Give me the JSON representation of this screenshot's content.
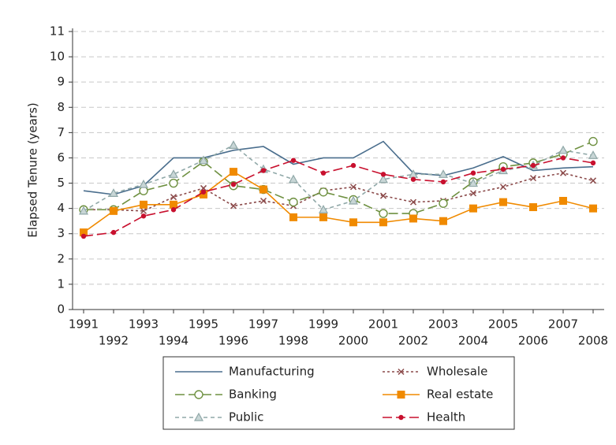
{
  "chart_data": {
    "type": "line",
    "y_label": "Elapsed Tenure (years)",
    "x": [
      1991,
      1992,
      1993,
      1994,
      1995,
      1996,
      1997,
      1998,
      1999,
      2000,
      2001,
      2002,
      2003,
      2004,
      2005,
      2006,
      2007,
      2008
    ],
    "xlim": [
      1991,
      2008
    ],
    "xticks": [
      1991,
      1992,
      1993,
      1994,
      1995,
      1996,
      1997,
      1998,
      1999,
      2000,
      2001,
      2002,
      2003,
      2004,
      2005,
      2006,
      2007,
      2008
    ],
    "ylim": [
      0,
      11
    ],
    "yticks": [
      0,
      1,
      2,
      3,
      4,
      5,
      6,
      7,
      8,
      9,
      10,
      11
    ],
    "grid": true,
    "legend": "bottom",
    "series": [
      {
        "name": "Manufacturing",
        "color": "#4a6e8d",
        "dash": "solid",
        "marker": "none",
        "values": [
          4.7,
          4.55,
          4.9,
          6.0,
          6.0,
          6.3,
          6.45,
          5.75,
          6.0,
          6.0,
          6.65,
          5.4,
          5.3,
          5.6,
          6.05,
          5.5,
          5.6,
          5.65
        ]
      },
      {
        "name": "Wholesale",
        "color": "#8b4a4a",
        "dash": "dotted",
        "marker": "x",
        "values": [
          3.95,
          3.95,
          3.9,
          4.45,
          4.8,
          4.1,
          4.3,
          4.1,
          4.7,
          4.85,
          4.5,
          4.25,
          4.3,
          4.6,
          4.85,
          5.2,
          5.4,
          5.1
        ]
      },
      {
        "name": "Banking",
        "color": "#6e9040",
        "dash": "longdash",
        "marker": "circle",
        "values": [
          3.95,
          3.95,
          4.7,
          5.0,
          5.85,
          4.9,
          4.75,
          4.25,
          4.65,
          4.35,
          3.8,
          3.8,
          4.2,
          5.05,
          5.65,
          5.8,
          6.15,
          6.65
        ]
      },
      {
        "name": "Real estate",
        "color": "#f08a00",
        "dash": "solid",
        "marker": "square",
        "values": [
          3.05,
          3.9,
          4.15,
          4.15,
          4.55,
          5.45,
          4.75,
          3.65,
          3.65,
          3.45,
          3.45,
          3.6,
          3.5,
          4.0,
          4.25,
          4.05,
          4.3,
          4.0
        ]
      },
      {
        "name": "Public",
        "color": "#90a8a8",
        "dash": "dashed",
        "marker": "triangle",
        "values": [
          3.9,
          4.6,
          4.95,
          5.35,
          5.9,
          6.5,
          5.55,
          5.15,
          3.95,
          4.3,
          5.15,
          5.35,
          5.35,
          5.0,
          5.5,
          5.7,
          6.3,
          6.1
        ]
      },
      {
        "name": "Health",
        "color": "#c8102e",
        "dash": "longdash",
        "marker": "dot",
        "values": [
          2.9,
          3.05,
          3.7,
          3.95,
          4.65,
          4.95,
          5.5,
          5.9,
          5.4,
          5.7,
          5.35,
          5.15,
          5.05,
          5.4,
          5.55,
          5.7,
          6.0,
          5.8
        ]
      }
    ]
  }
}
